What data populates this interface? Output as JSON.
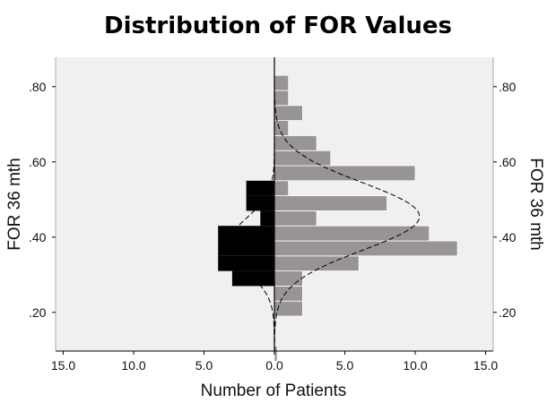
{
  "chart_data": {
    "type": "bar",
    "title": "Distribution of FOR Values",
    "xlabel": "Number of Patients",
    "ylabel_left": "FOR 36 mth",
    "ylabel_right": "FOR 36 mth",
    "x_ticks": [
      "15.0",
      "10.0",
      "5.0",
      "0.0",
      "5.0",
      "10.0",
      "15.0"
    ],
    "y_ticks": [
      ".20",
      ".40",
      ".60",
      ".80"
    ],
    "xlim": [
      -15,
      15
    ],
    "ylim": [
      0.07,
      0.85
    ],
    "bin_width": 0.04,
    "series": [
      {
        "side": "left",
        "color": "#000000",
        "bins": [
          {
            "y": 0.29,
            "count": 3
          },
          {
            "y": 0.33,
            "count": 4
          },
          {
            "y": 0.37,
            "count": 4
          },
          {
            "y": 0.41,
            "count": 4
          },
          {
            "y": 0.45,
            "count": 1
          },
          {
            "y": 0.49,
            "count": 2
          },
          {
            "y": 0.53,
            "count": 2
          }
        ],
        "curve": {
          "mean": 0.38,
          "sd": 0.07,
          "peak": 3.3
        }
      },
      {
        "side": "right",
        "color": "#979493",
        "bins": [
          {
            "y": 0.09,
            "count": 0.2
          },
          {
            "y": 0.21,
            "count": 2
          },
          {
            "y": 0.25,
            "count": 2
          },
          {
            "y": 0.29,
            "count": 2
          },
          {
            "y": 0.33,
            "count": 6
          },
          {
            "y": 0.37,
            "count": 13
          },
          {
            "y": 0.41,
            "count": 11
          },
          {
            "y": 0.45,
            "count": 3
          },
          {
            "y": 0.49,
            "count": 8
          },
          {
            "y": 0.53,
            "count": 1
          },
          {
            "y": 0.57,
            "count": 10
          },
          {
            "y": 0.61,
            "count": 4
          },
          {
            "y": 0.65,
            "count": 3
          },
          {
            "y": 0.69,
            "count": 1
          },
          {
            "y": 0.73,
            "count": 2
          },
          {
            "y": 0.77,
            "count": 1
          },
          {
            "y": 0.81,
            "count": 1
          }
        ],
        "curve": {
          "mean": 0.455,
          "sd": 0.09,
          "peak": 10.3
        }
      }
    ],
    "colors": {
      "background": "#ffffff",
      "plot_area": "#f0f0f0",
      "axis": "#000000",
      "curve": "#000000"
    }
  }
}
